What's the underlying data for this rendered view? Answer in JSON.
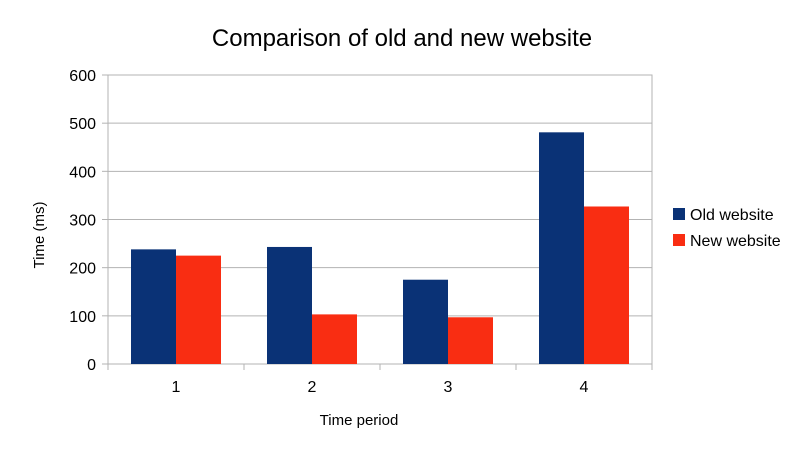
{
  "chart_data": {
    "type": "bar",
    "title": "Comparison of old and new website",
    "xlabel": "Time period",
    "ylabel": "Time (ms)",
    "categories": [
      "1",
      "2",
      "3",
      "4"
    ],
    "series": [
      {
        "name": "Old website",
        "color": "#0a3276",
        "values": [
          238,
          243,
          175,
          481
        ]
      },
      {
        "name": "New website",
        "color": "#f92d12",
        "values": [
          225,
          103,
          97,
          327
        ]
      }
    ],
    "ylim": [
      0,
      600
    ],
    "yticks": [
      0,
      100,
      200,
      300,
      400,
      500,
      600
    ],
    "grid": true,
    "legend_position": "right"
  }
}
